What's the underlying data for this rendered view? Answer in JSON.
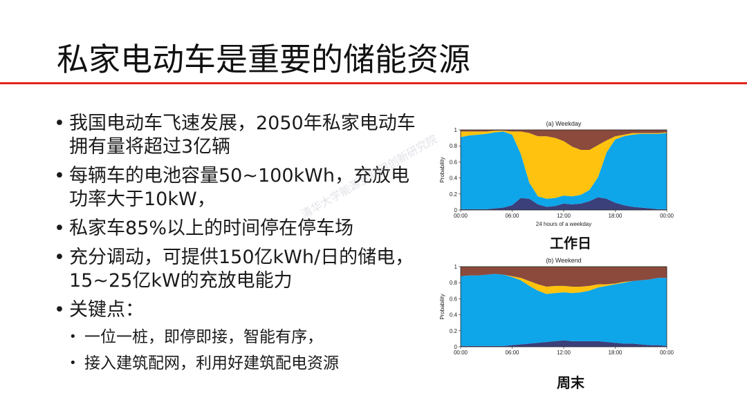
{
  "title": "私家电动车是重要的储能资源",
  "bullets": [
    "我国电动车飞速发展，2050年私家电动车拥有量将超过3亿辆",
    "每辆车的电池容量50~100kWh，充放电功率大于10kW，",
    "私家车85%以上的时间停在停车场",
    "充分调动，可提供150亿kWh/日的储电，15~25亿kW的充放电能力",
    "关键点："
  ],
  "sub_bullets": [
    "一位一桩，即停即接，智能有序，",
    "接入建筑配网，利用好建筑配电资源"
  ],
  "watermark": "清华大学能源互联网创新研究院",
  "colors": {
    "title_rule": "#e2231a",
    "blue": "#0ea5e9",
    "yellow": "#ffc20e",
    "brown": "#8b4a3c",
    "navy": "#3b3f7a"
  },
  "chart_data": [
    {
      "type": "area",
      "title": "(a) Weekday",
      "xlabel": "24 hours of a weekday",
      "ylabel": "Probability",
      "caption": "工作日",
      "x": [
        0,
        1,
        2,
        3,
        4,
        5,
        6,
        7,
        8,
        9,
        10,
        11,
        12,
        13,
        14,
        15,
        16,
        17,
        18,
        19,
        20,
        21,
        22,
        23,
        24
      ],
      "x_tick_labels": [
        "00:00",
        "06:00",
        "12:00",
        "18:00",
        "00:00"
      ],
      "y_tick_labels": [
        "0",
        "0.2",
        "0.4",
        "0.6",
        "0.8",
        "1"
      ],
      "ylim": [
        0,
        1
      ],
      "series": [
        {
          "values": [
            0.01,
            0.01,
            0.01,
            0.01,
            0.02,
            0.03,
            0.06,
            0.15,
            0.14,
            0.07,
            0.04,
            0.05,
            0.08,
            0.07,
            0.08,
            0.11,
            0.16,
            0.14,
            0.09,
            0.06,
            0.04,
            0.03,
            0.02,
            0.01,
            0.01
          ]
        },
        {
          "values": [
            0.9,
            0.92,
            0.93,
            0.94,
            0.95,
            0.95,
            0.88,
            0.55,
            0.2,
            0.1,
            0.1,
            0.1,
            0.1,
            0.1,
            0.11,
            0.14,
            0.25,
            0.58,
            0.79,
            0.86,
            0.9,
            0.92,
            0.93,
            0.94,
            0.95
          ]
        },
        {
          "values": [
            0.07,
            0.05,
            0.04,
            0.03,
            0.02,
            0.01,
            0.04,
            0.28,
            0.62,
            0.75,
            0.78,
            0.75,
            0.68,
            0.62,
            0.56,
            0.5,
            0.4,
            0.15,
            0.04,
            0.02,
            0.02,
            0.01,
            0.01,
            0.01,
            0.01
          ]
        },
        {
          "values": [
            0.02,
            0.02,
            0.02,
            0.02,
            0.01,
            0.01,
            0.02,
            0.02,
            0.04,
            0.08,
            0.08,
            0.1,
            0.14,
            0.21,
            0.25,
            0.25,
            0.19,
            0.13,
            0.08,
            0.06,
            0.04,
            0.04,
            0.04,
            0.04,
            0.03
          ]
        }
      ]
    },
    {
      "type": "area",
      "title": "(b) Weekend",
      "caption": "周末",
      "ylabel": "Probability",
      "x": [
        0,
        1,
        2,
        3,
        4,
        5,
        6,
        7,
        8,
        9,
        10,
        11,
        12,
        13,
        14,
        15,
        16,
        17,
        18,
        19,
        20,
        21,
        22,
        23,
        24
      ],
      "x_tick_labels": [
        "00:00",
        "06:00",
        "12:00",
        "18:00",
        "00:00"
      ],
      "y_tick_labels": [
        "0",
        "0.2",
        "0.4",
        "0.6",
        "0.8",
        "1"
      ],
      "ylim": [
        0,
        1
      ],
      "series": [
        {
          "values": [
            0.01,
            0.01,
            0.01,
            0.01,
            0.01,
            0.01,
            0.02,
            0.03,
            0.04,
            0.05,
            0.06,
            0.07,
            0.08,
            0.07,
            0.07,
            0.07,
            0.07,
            0.06,
            0.05,
            0.04,
            0.04,
            0.03,
            0.02,
            0.02,
            0.01
          ]
        },
        {
          "values": [
            0.87,
            0.88,
            0.88,
            0.89,
            0.9,
            0.89,
            0.85,
            0.8,
            0.72,
            0.65,
            0.6,
            0.6,
            0.6,
            0.6,
            0.61,
            0.63,
            0.67,
            0.7,
            0.73,
            0.76,
            0.78,
            0.8,
            0.82,
            0.84,
            0.85
          ]
        },
        {
          "values": [
            0.0,
            0.0,
            0.0,
            0.0,
            0.0,
            0.0,
            0.01,
            0.03,
            0.06,
            0.08,
            0.09,
            0.09,
            0.08,
            0.08,
            0.07,
            0.06,
            0.04,
            0.02,
            0.01,
            0.01,
            0.0,
            0.0,
            0.0,
            0.0,
            0.0
          ]
        },
        {
          "values": [
            0.12,
            0.11,
            0.11,
            0.1,
            0.09,
            0.1,
            0.12,
            0.14,
            0.18,
            0.22,
            0.25,
            0.24,
            0.24,
            0.25,
            0.25,
            0.24,
            0.22,
            0.22,
            0.21,
            0.19,
            0.18,
            0.17,
            0.16,
            0.14,
            0.14
          ]
        }
      ]
    }
  ]
}
